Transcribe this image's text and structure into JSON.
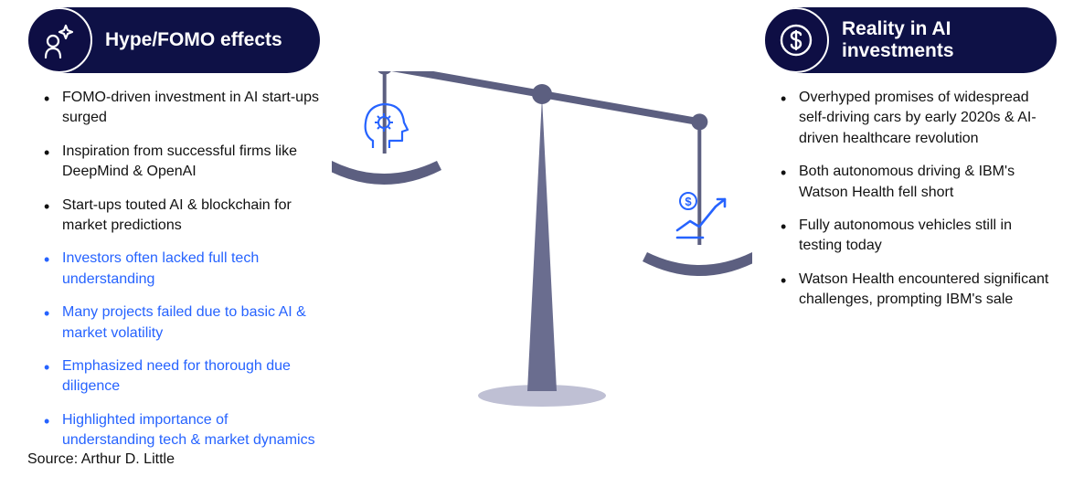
{
  "colors": {
    "navy": "#0e1146",
    "pill_bg": "#0e1146",
    "blue_accent": "#2663ff",
    "text_dark": "#0a0a0a",
    "scale_dark": "#5c5f80",
    "scale_light": "#aab",
    "background": "#ffffff"
  },
  "left": {
    "title": "Hype/FOMO effects",
    "items": [
      {
        "text": "FOMO-driven investment in AI start-ups surged",
        "accent": false
      },
      {
        "text": "Inspiration from successful firms like DeepMind & OpenAI",
        "accent": false
      },
      {
        "text": "Start-ups touted AI & blockchain for market predictions",
        "accent": false
      },
      {
        "text": "Investors often lacked full tech understanding",
        "accent": true
      },
      {
        "text": "Many projects failed due to basic AI & market volatility",
        "accent": true
      },
      {
        "text": "Emphasized need for thorough due diligence",
        "accent": true
      },
      {
        "text": "Highlighted importance of understanding tech & market dynamics",
        "accent": true
      }
    ]
  },
  "right": {
    "title": "Reality in AI investments",
    "items": [
      {
        "text": "Overhyped promises of widespread self-driving cars by early 2020s & AI-driven healthcare revolution",
        "accent": false
      },
      {
        "text": "Both autonomous driving & IBM's Watson Health fell short",
        "accent": false
      },
      {
        "text": "Fully autonomous vehicles still in testing today",
        "accent": false
      },
      {
        "text": "Watson Health encountered significant challenges, prompting IBM's sale",
        "accent": false
      }
    ]
  },
  "source": "Source: Arthur D. Little",
  "scale": {
    "tilt_deg": -10,
    "left_higher": true,
    "beam_color": "#5c5f80",
    "pan_color": "#5c5f80",
    "stand_color": "#5c5f80",
    "base_color": "#aab",
    "fulcrum_circle_color": "#5c5f80",
    "left_icon": "head-gear",
    "right_icon": "dollar-chart"
  }
}
